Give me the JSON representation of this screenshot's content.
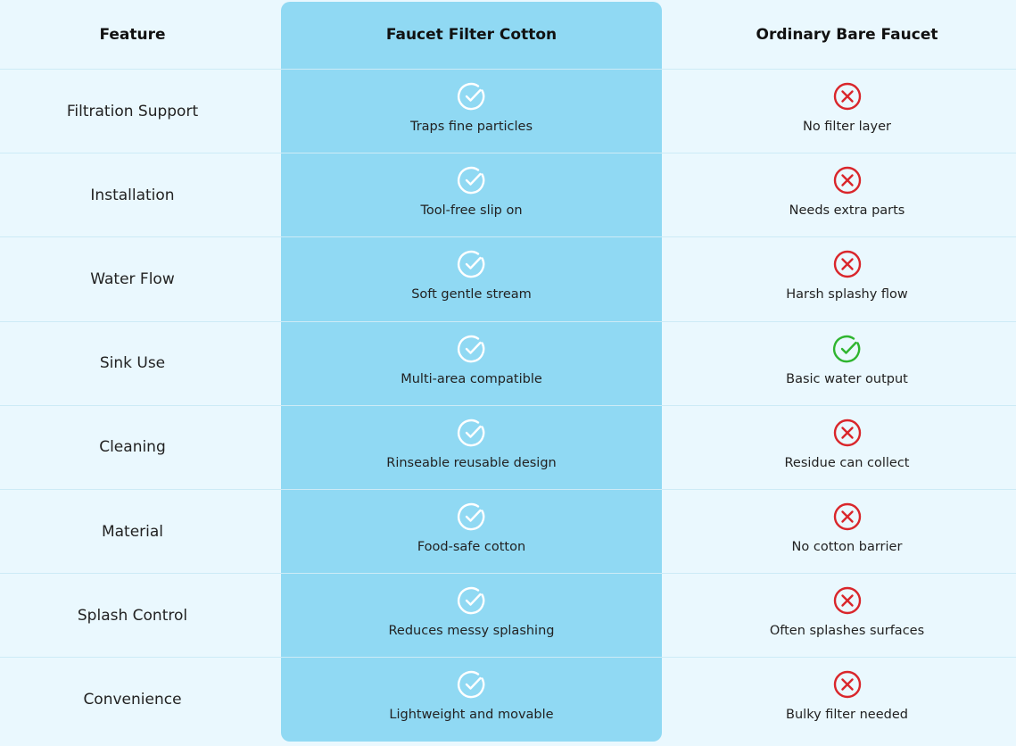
{
  "header": {
    "feature": "Feature",
    "product": "Faucet Filter Cotton",
    "competitor": "Ordinary Bare Faucet"
  },
  "colors": {
    "background": "#eaf8fe",
    "highlight": "#90d9f3",
    "check_white": "#ffffff",
    "cross_red": "#d9262b",
    "check_green": "#2fb52f"
  },
  "rows": [
    {
      "feature": "Filtration Support",
      "product_icon": "check-icon",
      "product_text": "Traps fine particles",
      "competitor_icon": "cross-icon",
      "competitor_text": "No filter layer"
    },
    {
      "feature": "Installation",
      "product_icon": "check-icon",
      "product_text": "Tool-free slip on",
      "competitor_icon": "cross-icon",
      "competitor_text": "Needs extra parts"
    },
    {
      "feature": "Water Flow",
      "product_icon": "check-icon",
      "product_text": "Soft gentle stream",
      "competitor_icon": "cross-icon",
      "competitor_text": "Harsh splashy flow"
    },
    {
      "feature": "Sink Use",
      "product_icon": "check-icon",
      "product_text": "Multi-area compatible",
      "competitor_icon": "green-check-icon",
      "competitor_text": "Basic water output"
    },
    {
      "feature": "Cleaning",
      "product_icon": "check-icon",
      "product_text": "Rinseable reusable design",
      "competitor_icon": "cross-icon",
      "competitor_text": "Residue can collect"
    },
    {
      "feature": "Material",
      "product_icon": "check-icon",
      "product_text": "Food-safe cotton",
      "competitor_icon": "cross-icon",
      "competitor_text": "No cotton barrier"
    },
    {
      "feature": "Splash Control",
      "product_icon": "check-icon",
      "product_text": "Reduces messy splashing",
      "competitor_icon": "cross-icon",
      "competitor_text": "Often splashes surfaces"
    },
    {
      "feature": "Convenience",
      "product_icon": "check-icon",
      "product_text": "Lightweight and movable",
      "competitor_icon": "cross-icon",
      "competitor_text": "Bulky filter needed"
    }
  ]
}
